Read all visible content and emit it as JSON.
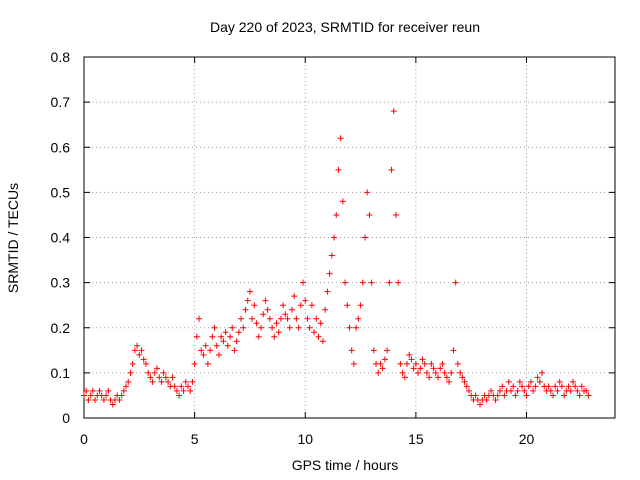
{
  "chart_data": {
    "type": "scatter",
    "title": "Day 220 of 2023, SRMTID for receiver reun",
    "xlabel": "GPS time / hours",
    "ylabel": "SRMTID / TECUs",
    "xlim": [
      0,
      24
    ],
    "ylim": [
      0,
      0.8
    ],
    "xticks": [
      0,
      5,
      10,
      15,
      20
    ],
    "xtick_labels": [
      "0",
      "5",
      "10",
      "15",
      "20"
    ],
    "yticks": [
      0,
      0.1,
      0.2,
      0.3,
      0.4,
      0.5,
      0.6,
      0.7,
      0.8
    ],
    "ytick_labels": [
      "0",
      "0.1",
      "0.2",
      "0.3",
      "0.4",
      "0.5",
      "0.6",
      "0.7",
      "0.8"
    ],
    "grid": true,
    "marker": "plus",
    "series_color": "#ff0000",
    "series": [
      {
        "name": "SRMTID",
        "points": [
          [
            0.0,
            0.05
          ],
          [
            0.1,
            0.06
          ],
          [
            0.2,
            0.04
          ],
          [
            0.3,
            0.05
          ],
          [
            0.4,
            0.06
          ],
          [
            0.5,
            0.04
          ],
          [
            0.6,
            0.05
          ],
          [
            0.7,
            0.06
          ],
          [
            0.8,
            0.05
          ],
          [
            0.9,
            0.04
          ],
          [
            1.0,
            0.05
          ],
          [
            1.1,
            0.06
          ],
          [
            1.2,
            0.04
          ],
          [
            1.3,
            0.03
          ],
          [
            1.4,
            0.04
          ],
          [
            1.5,
            0.05
          ],
          [
            1.6,
            0.04
          ],
          [
            1.7,
            0.05
          ],
          [
            1.8,
            0.06
          ],
          [
            1.9,
            0.07
          ],
          [
            2.0,
            0.08
          ],
          [
            2.1,
            0.1
          ],
          [
            2.2,
            0.12
          ],
          [
            2.3,
            0.15
          ],
          [
            2.4,
            0.16
          ],
          [
            2.5,
            0.14
          ],
          [
            2.6,
            0.15
          ],
          [
            2.7,
            0.13
          ],
          [
            2.8,
            0.12
          ],
          [
            2.9,
            0.1
          ],
          [
            3.0,
            0.09
          ],
          [
            3.1,
            0.08
          ],
          [
            3.2,
            0.1
          ],
          [
            3.3,
            0.11
          ],
          [
            3.4,
            0.09
          ],
          [
            3.5,
            0.08
          ],
          [
            3.6,
            0.1
          ],
          [
            3.7,
            0.09
          ],
          [
            3.8,
            0.08
          ],
          [
            3.9,
            0.07
          ],
          [
            4.0,
            0.09
          ],
          [
            4.1,
            0.07
          ],
          [
            4.2,
            0.06
          ],
          [
            4.3,
            0.05
          ],
          [
            4.4,
            0.07
          ],
          [
            4.5,
            0.06
          ],
          [
            4.6,
            0.08
          ],
          [
            4.7,
            0.07
          ],
          [
            4.8,
            0.06
          ],
          [
            4.9,
            0.08
          ],
          [
            5.0,
            0.12
          ],
          [
            5.1,
            0.18
          ],
          [
            5.2,
            0.22
          ],
          [
            5.3,
            0.15
          ],
          [
            5.4,
            0.14
          ],
          [
            5.5,
            0.16
          ],
          [
            5.6,
            0.12
          ],
          [
            5.7,
            0.15
          ],
          [
            5.8,
            0.18
          ],
          [
            5.9,
            0.2
          ],
          [
            6.0,
            0.16
          ],
          [
            6.1,
            0.14
          ],
          [
            6.2,
            0.18
          ],
          [
            6.3,
            0.17
          ],
          [
            6.4,
            0.19
          ],
          [
            6.5,
            0.16
          ],
          [
            6.6,
            0.18
          ],
          [
            6.7,
            0.2
          ],
          [
            6.8,
            0.15
          ],
          [
            6.9,
            0.17
          ],
          [
            7.0,
            0.19
          ],
          [
            7.1,
            0.22
          ],
          [
            7.2,
            0.2
          ],
          [
            7.3,
            0.24
          ],
          [
            7.4,
            0.26
          ],
          [
            7.5,
            0.28
          ],
          [
            7.6,
            0.22
          ],
          [
            7.7,
            0.25
          ],
          [
            7.8,
            0.21
          ],
          [
            7.9,
            0.18
          ],
          [
            8.0,
            0.2
          ],
          [
            8.1,
            0.23
          ],
          [
            8.2,
            0.26
          ],
          [
            8.3,
            0.24
          ],
          [
            8.4,
            0.22
          ],
          [
            8.5,
            0.2
          ],
          [
            8.6,
            0.18
          ],
          [
            8.7,
            0.21
          ],
          [
            8.8,
            0.19
          ],
          [
            8.9,
            0.22
          ],
          [
            9.0,
            0.25
          ],
          [
            9.1,
            0.23
          ],
          [
            9.2,
            0.22
          ],
          [
            9.3,
            0.2
          ],
          [
            9.4,
            0.24
          ],
          [
            9.5,
            0.27
          ],
          [
            9.6,
            0.22
          ],
          [
            9.7,
            0.2
          ],
          [
            9.8,
            0.25
          ],
          [
            9.9,
            0.3
          ],
          [
            10.0,
            0.26
          ],
          [
            10.1,
            0.22
          ],
          [
            10.2,
            0.2
          ],
          [
            10.3,
            0.25
          ],
          [
            10.4,
            0.19
          ],
          [
            10.5,
            0.22
          ],
          [
            10.6,
            0.18
          ],
          [
            10.7,
            0.21
          ],
          [
            10.8,
            0.17
          ],
          [
            10.9,
            0.24
          ],
          [
            11.0,
            0.28
          ],
          [
            11.1,
            0.32
          ],
          [
            11.2,
            0.36
          ],
          [
            11.3,
            0.4
          ],
          [
            11.4,
            0.45
          ],
          [
            11.5,
            0.55
          ],
          [
            11.6,
            0.62
          ],
          [
            11.7,
            0.48
          ],
          [
            11.8,
            0.3
          ],
          [
            11.9,
            0.25
          ],
          [
            12.0,
            0.2
          ],
          [
            12.1,
            0.15
          ],
          [
            12.2,
            0.12
          ],
          [
            12.3,
            0.2
          ],
          [
            12.4,
            0.22
          ],
          [
            12.5,
            0.25
          ],
          [
            12.6,
            0.3
          ],
          [
            12.7,
            0.4
          ],
          [
            12.8,
            0.5
          ],
          [
            12.9,
            0.45
          ],
          [
            13.0,
            0.3
          ],
          [
            13.1,
            0.15
          ],
          [
            13.2,
            0.12
          ],
          [
            13.3,
            0.1
          ],
          [
            13.4,
            0.12
          ],
          [
            13.5,
            0.11
          ],
          [
            13.6,
            0.13
          ],
          [
            13.7,
            0.15
          ],
          [
            13.8,
            0.3
          ],
          [
            13.9,
            0.55
          ],
          [
            14.0,
            0.68
          ],
          [
            14.1,
            0.45
          ],
          [
            14.2,
            0.3
          ],
          [
            14.3,
            0.12
          ],
          [
            14.4,
            0.1
          ],
          [
            14.5,
            0.09
          ],
          [
            14.6,
            0.12
          ],
          [
            14.7,
            0.14
          ],
          [
            14.8,
            0.13
          ],
          [
            14.9,
            0.11
          ],
          [
            15.0,
            0.12
          ],
          [
            15.1,
            0.1
          ],
          [
            15.2,
            0.11
          ],
          [
            15.3,
            0.13
          ],
          [
            15.4,
            0.12
          ],
          [
            15.5,
            0.1
          ],
          [
            15.6,
            0.09
          ],
          [
            15.7,
            0.12
          ],
          [
            15.8,
            0.11
          ],
          [
            15.9,
            0.1
          ],
          [
            16.0,
            0.09
          ],
          [
            16.1,
            0.11
          ],
          [
            16.2,
            0.12
          ],
          [
            16.3,
            0.1
          ],
          [
            16.4,
            0.09
          ],
          [
            16.5,
            0.08
          ],
          [
            16.6,
            0.1
          ],
          [
            16.7,
            0.15
          ],
          [
            16.8,
            0.3
          ],
          [
            16.9,
            0.12
          ],
          [
            17.0,
            0.1
          ],
          [
            17.1,
            0.09
          ],
          [
            17.2,
            0.08
          ],
          [
            17.3,
            0.07
          ],
          [
            17.4,
            0.06
          ],
          [
            17.5,
            0.05
          ],
          [
            17.6,
            0.04
          ],
          [
            17.7,
            0.05
          ],
          [
            17.8,
            0.04
          ],
          [
            17.9,
            0.03
          ],
          [
            18.0,
            0.04
          ],
          [
            18.1,
            0.05
          ],
          [
            18.2,
            0.04
          ],
          [
            18.3,
            0.05
          ],
          [
            18.4,
            0.06
          ],
          [
            18.5,
            0.05
          ],
          [
            18.6,
            0.04
          ],
          [
            18.7,
            0.05
          ],
          [
            18.8,
            0.06
          ],
          [
            18.9,
            0.07
          ],
          [
            19.0,
            0.05
          ],
          [
            19.1,
            0.06
          ],
          [
            19.2,
            0.08
          ],
          [
            19.3,
            0.06
          ],
          [
            19.4,
            0.07
          ],
          [
            19.5,
            0.05
          ],
          [
            19.6,
            0.06
          ],
          [
            19.7,
            0.08
          ],
          [
            19.8,
            0.07
          ],
          [
            19.9,
            0.06
          ],
          [
            20.0,
            0.05
          ],
          [
            20.1,
            0.07
          ],
          [
            20.2,
            0.08
          ],
          [
            20.3,
            0.06
          ],
          [
            20.4,
            0.07
          ],
          [
            20.5,
            0.09
          ],
          [
            20.6,
            0.08
          ],
          [
            20.7,
            0.1
          ],
          [
            20.8,
            0.07
          ],
          [
            20.9,
            0.06
          ],
          [
            21.0,
            0.07
          ],
          [
            21.1,
            0.06
          ],
          [
            21.2,
            0.05
          ],
          [
            21.3,
            0.07
          ],
          [
            21.4,
            0.06
          ],
          [
            21.5,
            0.08
          ],
          [
            21.6,
            0.07
          ],
          [
            21.7,
            0.05
          ],
          [
            21.8,
            0.06
          ],
          [
            21.9,
            0.07
          ],
          [
            22.0,
            0.06
          ],
          [
            22.1,
            0.08
          ],
          [
            22.2,
            0.07
          ],
          [
            22.3,
            0.06
          ],
          [
            22.4,
            0.05
          ],
          [
            22.5,
            0.07
          ],
          [
            22.6,
            0.06
          ],
          [
            22.7,
            0.06
          ],
          [
            22.8,
            0.05
          ]
        ]
      }
    ]
  }
}
